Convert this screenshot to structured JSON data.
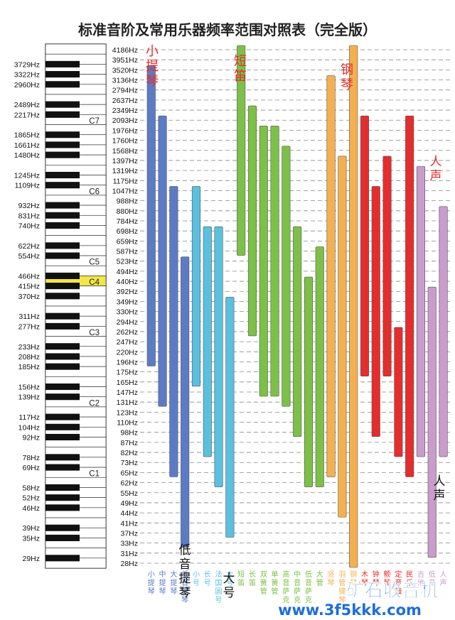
{
  "title": "标准音阶及常用乐器频率范围对照表（完全版）",
  "hz_labels": [
    "3729Hz",
    "3322Hz",
    "2960Hz",
    "2489Hz",
    "2217Hz",
    "1865Hz",
    "1661Hz",
    "1480Hz",
    "1245Hz",
    "1109Hz",
    "932Hz",
    "831Hz",
    "740Hz",
    "622Hz",
    "554Hz",
    "466Hz",
    "415Hz",
    "370Hz",
    "311Hz",
    "277Hz",
    "233Hz",
    "208Hz",
    "185Hz",
    "156Hz",
    "139Hz",
    "117Hz",
    "104Hz",
    "92Hz",
    "78Hz",
    "69Hz",
    "58Hz",
    "52Hz",
    "46Hz",
    "39Hz",
    "35Hz",
    "29Hz"
  ],
  "octave_labels": [
    "C7",
    "C6",
    "C5",
    "C4",
    "C3",
    "C2",
    "C1"
  ],
  "note_labels": [
    "4186Hz",
    "3951Hz",
    "3520Hz",
    "3136Hz",
    "2794Hz",
    "2637Hz",
    "2349Hz",
    "2093Hz",
    "1976Hz",
    "1760Hz",
    "1568Hz",
    "1397Hz",
    "1319Hz",
    "1175Hz",
    "1047Hz",
    "988Hz",
    "880Hz",
    "784Hz",
    "698Hz",
    "659Hz",
    "587Hz",
    "523Hz",
    "494Hz",
    "440Hz",
    "392Hz",
    "349Hz",
    "330Hz",
    "294Hz",
    "262Hz",
    "247Hz",
    "220Hz",
    "196Hz",
    "175Hz",
    "165Hz",
    "147Hz",
    "131Hz",
    "123Hz",
    "110Hz",
    "98Hz",
    "87Hz",
    "82Hz",
    "73Hz",
    "65Hz",
    "62Hz",
    "55Hz",
    "49Hz",
    "44Hz",
    "41Hz",
    "37Hz",
    "33Hz",
    "31Hz",
    "28Hz"
  ],
  "instruments": [
    {
      "name": "小提琴",
      "color": "#5b7cc4",
      "low": "196Hz",
      "high": "3520Hz"
    },
    {
      "name": "中提琴",
      "color": "#5b7cc4",
      "low": "131Hz",
      "high": "2093Hz"
    },
    {
      "name": "大提琴",
      "color": "#5b7cc4",
      "low": "65Hz",
      "high": "1047Hz"
    },
    {
      "name": "低音提琴",
      "color": "#5b7cc4",
      "low": "33Hz",
      "high": "523Hz"
    },
    {
      "name": "小号",
      "color": "#5bc0de",
      "low": "165Hz",
      "high": "1047Hz"
    },
    {
      "name": "长号",
      "color": "#5bc0de",
      "low": "82Hz",
      "high": "698Hz"
    },
    {
      "name": "法国圆号",
      "color": "#5bc0de",
      "low": "62Hz",
      "high": "698Hz"
    },
    {
      "name": "大号",
      "color": "#5bc0de",
      "low": "37Hz",
      "high": "349Hz"
    },
    {
      "name": "短笛",
      "color": "#7dc048",
      "low": "587Hz",
      "high": "4186Hz"
    },
    {
      "name": "长笛",
      "color": "#7dc048",
      "low": "262Hz",
      "high": "2349Hz"
    },
    {
      "name": "双簧管",
      "color": "#7dc048",
      "low": "147Hz",
      "high": "1976Hz"
    },
    {
      "name": "单簧管",
      "color": "#7dc048",
      "low": "147Hz",
      "high": "1976Hz"
    },
    {
      "name": "高音萨克",
      "color": "#7dc048",
      "low": "131Hz",
      "high": "1568Hz"
    },
    {
      "name": "中音萨克",
      "color": "#7dc048",
      "low": "98Hz",
      "high": "698Hz"
    },
    {
      "name": "低音萨克",
      "color": "#7dc048",
      "low": "62Hz",
      "high": "440Hz"
    },
    {
      "name": "大管",
      "color": "#7dc048",
      "low": "62Hz",
      "high": "587Hz"
    },
    {
      "name": "竖琴",
      "color": "#f4b050",
      "low": "65Hz",
      "high": "3136Hz"
    },
    {
      "name": "羽管键琴",
      "color": "#f4b050",
      "low": "44Hz",
      "high": "1397Hz"
    },
    {
      "name": "钢琴",
      "color": "#f4b050",
      "low": "28Hz",
      "high": "4186Hz"
    },
    {
      "name": "木琴",
      "color": "#e52d2d",
      "low": "175Hz",
      "high": "2093Hz"
    },
    {
      "name": "钟琴",
      "color": "#e52d2d",
      "low": "98Hz",
      "high": "1047Hz"
    },
    {
      "name": "颤琴",
      "color": "#e52d2d",
      "low": "175Hz",
      "high": "1397Hz"
    },
    {
      "name": "定音鼓",
      "color": "#e52d2d",
      "low": "82Hz",
      "high": "262Hz"
    },
    {
      "name": "民乐",
      "color": "#e52d2d",
      "low": "65Hz",
      "high": "2093Hz"
    },
    {
      "name": "吉他",
      "color": "#c99ccc",
      "low": "82Hz",
      "high": "1319Hz"
    },
    {
      "name": "低音",
      "color": "#c99ccc",
      "low": "31Hz",
      "high": "392Hz"
    },
    {
      "name": "人声",
      "color": "#c99ccc",
      "low": "82Hz",
      "high": "880Hz"
    }
  ],
  "annotations": {
    "violin": "小提琴",
    "piccolo": "短笛",
    "piano": "钢琴",
    "voice_top": "人声",
    "voice_bottom": "人声",
    "bass_strings": "低音提琴",
    "tuba": "大号"
  },
  "watermark": {
    "brand": "矿石收音机",
    "url": "www.3f5kkk.com"
  },
  "colors": {
    "strings": "#5b7cc4",
    "brass": "#5bc0de",
    "woodwinds": "#7dc048",
    "keyboards": "#f4b050",
    "percussion": "#e52d2d",
    "others": "#c99ccc",
    "middle_c": "#f2e64a",
    "annotation_red": "#e52d2d"
  }
}
